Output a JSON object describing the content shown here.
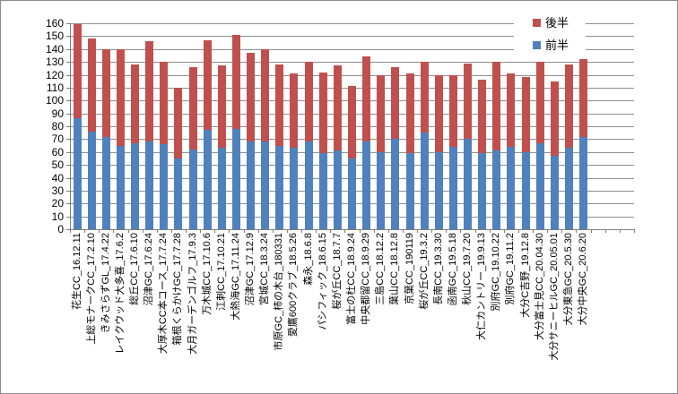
{
  "window": {
    "background": "#FFFFFF",
    "border_color": "#8A8A8A"
  },
  "legend": {
    "items": [
      {
        "label": "後半",
        "color": "#C0504D"
      },
      {
        "label": "前半",
        "color": "#4F81BD"
      }
    ]
  },
  "chart_data": {
    "type": "bar",
    "stacked": true,
    "title": "",
    "xlabel": "",
    "ylabel": "",
    "ylim": [
      0,
      160
    ],
    "ytick_step": 10,
    "grid": true,
    "legend_position": "top-right-inside",
    "gridline_color": "#8E8E8E",
    "axis_color": "#7F7F7F",
    "empty_trailing_slots": 3,
    "categories": [
      "花生CC_16.12.11",
      "上総モナークCC_17.2.10",
      "きみさらずGL_17.4.22",
      "レイクウッド大多喜_17.6.2",
      "総丘CC_17.6.10",
      "沼津GC_17.6.24",
      "大厚木CC本コース_17.7.24",
      "箱根くらかけGC_17.7.28",
      "大月ガーデンゴルフ_17.9.3",
      "万木城CC_17.10.6",
      "江刺CC_17.10.21",
      "大熱海GC_17.11.24",
      "沼津GC_17.12.9",
      "宮城CC_18.3.24",
      "市原GC_柿の木台_180331",
      "愛鷹600クラブ_18.5.26",
      "森永_18.6.8",
      "パシフィック_18.6.15",
      "桜が丘CC_18.7.7",
      "富士の杜CC_18.9.24",
      "中央都留CC_18.9.29",
      "三島CC_18.12.2",
      "葉山CC_18.12.8",
      "京葉CC_190119",
      "桜が丘CC_19.3.2",
      "長南CC_19.3.30",
      "函南GC_19.5.18",
      "秋山CC_19.7.20",
      "大仁カントリー_19.9.13",
      "別府GC_19.10.22",
      "別府GC_19.11.2",
      "大分C吉野_19.12.8",
      "大分富士見CC_20.04.30",
      "大分サニーヒルGC_20.05.01",
      "大分東急GC_20.5.30",
      "大分中央GC_20.6.20"
    ],
    "series": [
      {
        "name": "前半",
        "color": "#4F81BD",
        "values": [
          86,
          76,
          72,
          65,
          67,
          68,
          66,
          55,
          62,
          77,
          63,
          78,
          68,
          68,
          65,
          63,
          68,
          59,
          61,
          55,
          68,
          60,
          70,
          59,
          75,
          60,
          64,
          70,
          59,
          61,
          64,
          60,
          67,
          57,
          63,
          72
        ]
      },
      {
        "name": "後半",
        "color": "#C0504D",
        "values": [
          73,
          72,
          68,
          75,
          61,
          78,
          64,
          55,
          64,
          70,
          64,
          73,
          69,
          72,
          63,
          58,
          62,
          63,
          66,
          56,
          66,
          60,
          56,
          62,
          55,
          60,
          56,
          59,
          57,
          69,
          57,
          58,
          63,
          58,
          65,
          60
        ]
      }
    ]
  }
}
